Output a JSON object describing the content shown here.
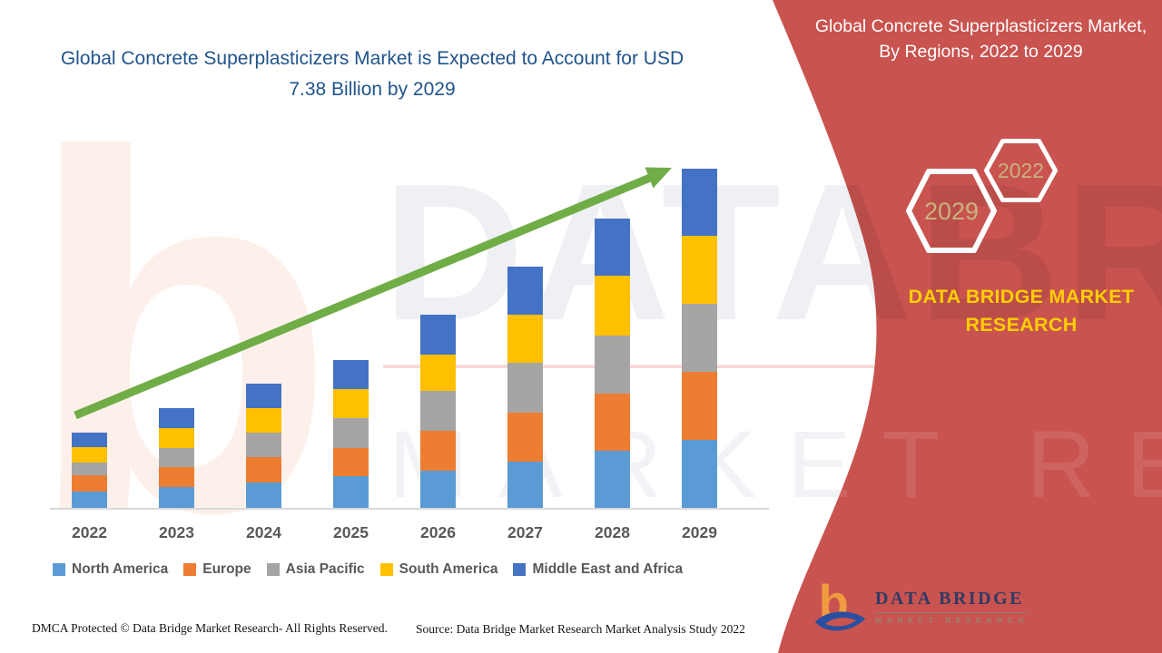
{
  "header": {
    "chart_title": "Global Concrete Superplasticizers Market is Expected to Account for USD 7.38 Billion by 2029"
  },
  "chart_data": {
    "type": "bar",
    "stacked": true,
    "title": "Global Concrete Superplasticizers Market is Expected to Account for USD 7.38 Billion by 2029",
    "categories": [
      "2022",
      "2023",
      "2024",
      "2025",
      "2026",
      "2027",
      "2028",
      "2029"
    ],
    "unit": "USD Billion (estimated from bar heights; no value axis shown; 2029 total = 7.38)",
    "series": [
      {
        "name": "North America",
        "color": "#5B9BD5",
        "values": [
          0.36,
          0.46,
          0.55,
          0.69,
          0.81,
          1.01,
          1.25,
          1.48
        ]
      },
      {
        "name": "Europe",
        "color": "#ED7D31",
        "values": [
          0.36,
          0.44,
          0.55,
          0.61,
          0.87,
          1.07,
          1.25,
          1.48
        ]
      },
      {
        "name": "Asia Pacific",
        "color": "#A5A5A5",
        "values": [
          0.28,
          0.42,
          0.53,
          0.65,
          0.87,
          1.09,
          1.27,
          1.48
        ]
      },
      {
        "name": "South America",
        "color": "#FFC000",
        "values": [
          0.34,
          0.44,
          0.53,
          0.63,
          0.79,
          1.05,
          1.31,
          1.48
        ]
      },
      {
        "name": "Middle East and Africa",
        "color": "#4472C4",
        "values": [
          0.32,
          0.44,
          0.53,
          0.63,
          0.87,
          1.05,
          1.25,
          1.46
        ]
      }
    ],
    "totals_est": [
      1.66,
      2.2,
      2.69,
      3.21,
      4.21,
      5.27,
      6.33,
      7.38
    ],
    "ylim": [
      0,
      7.6
    ],
    "gridlines": false,
    "legend_position": "bottom",
    "annotations": {
      "trend_arrow": "upward green arrow across bar tops",
      "trend_arrow_color": "#70AD47"
    }
  },
  "side_panel": {
    "bg_color": "#C9534F",
    "title": "Global Concrete Superplasticizers Market, By Regions, 2022 to 2029",
    "badge_large": "2029",
    "badge_small": "2022",
    "brand_text": "DATA BRIDGE MARKET RESEARCH",
    "logo_title": "DATA BRIDGE",
    "logo_subtitle": "MARKET RESEARCH",
    "badge_text_color": "#C8B37E",
    "brand_text_color": "#FFCE00"
  },
  "footer": {
    "dmca": "DMCA Protected © Data Bridge Market Research- All Rights Reserved.",
    "source": "Source: Data Bridge Market Research Market Analysis Study 2022"
  },
  "watermark": {
    "line1": "DATABRIDGE",
    "line2": "MARKET RESEARCH",
    "letter": "b"
  }
}
